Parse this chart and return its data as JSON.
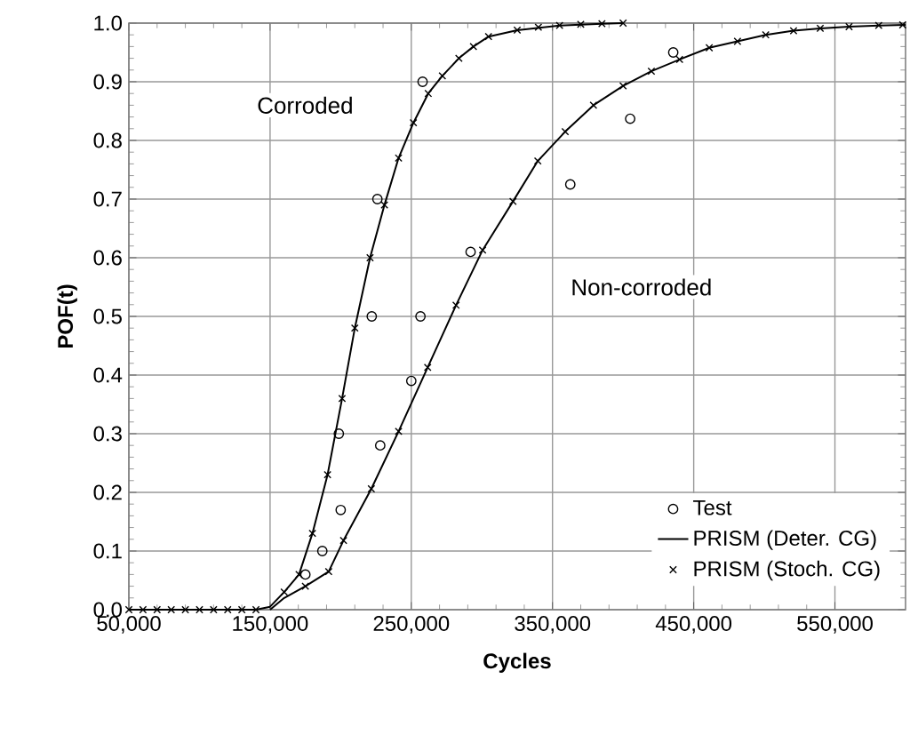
{
  "chart_data": {
    "type": "line",
    "xlabel": "Cycles",
    "ylabel": "POF(t)",
    "xlim": [
      50000,
      600000
    ],
    "ylim": [
      0,
      1
    ],
    "xticks": [
      {
        "value": 50000,
        "label": "50,000"
      },
      {
        "value": 150000,
        "label": "150,000"
      },
      {
        "value": 250000,
        "label": "250,000"
      },
      {
        "value": 350000,
        "label": "350,000"
      },
      {
        "value": 450000,
        "label": "450,000"
      },
      {
        "value": 550000,
        "label": "550,000"
      }
    ],
    "yticks": [
      {
        "value": 0,
        "label": "0.0"
      },
      0.1,
      0.2,
      0.3,
      0.4,
      0.5,
      0.6,
      0.7,
      0.8,
      0.9,
      {
        "value": 1,
        "label": "1.0"
      }
    ],
    "grid": true,
    "legend": "bottom right",
    "annotations": [
      "Corroded",
      "Non-corroded"
    ],
    "series": [
      {
        "name": "Test",
        "type": "scatter",
        "marker": "circle",
        "color": "#000000",
        "x": [
          175000,
          187000,
          198700,
          222000,
          226000,
          258000,
          200000,
          228000,
          250000,
          256500,
          292000,
          362600,
          405000,
          435500
        ],
        "values": [
          0.06,
          0.1,
          0.3,
          0.5,
          0.7,
          0.9,
          0.17,
          0.28,
          0.39,
          0.5,
          0.61,
          0.725,
          0.837,
          0.95
        ]
      },
      {
        "name": "PRISM (Deter. CG)",
        "marker": "none",
        "line_style": "solid",
        "color": "#000000",
        "x": [
          50000,
          140000,
          150000,
          160000,
          170500,
          180000,
          190700,
          201000,
          210000,
          220800,
          231000,
          241000,
          251500,
          262000,
          272000,
          283700,
          294000,
          304700,
          325000,
          355000,
          385000,
          400000
        ],
        "values": [
          0,
          0,
          0.005,
          0.03,
          0.06,
          0.13,
          0.23,
          0.36,
          0.48,
          0.6,
          0.69,
          0.77,
          0.83,
          0.88,
          0.91,
          0.94,
          0.96,
          0.977,
          0.988,
          0.996,
          0.999,
          1.0
        ]
      },
      {
        "marker": "none",
        "line_style": "solid",
        "color": "#000000",
        "x": [
          150000,
          160000,
          175000,
          191500,
          202000,
          221700,
          241000,
          261600,
          281700,
          300500,
          322000,
          339600,
          359000,
          379000,
          400000,
          420000,
          440000,
          461000,
          481000,
          501000,
          520700,
          539600,
          560000,
          581000,
          600000
        ],
        "values": [
          0,
          0.02,
          0.04,
          0.065,
          0.118,
          0.206,
          0.304,
          0.413,
          0.519,
          0.613,
          0.696,
          0.765,
          0.815,
          0.86,
          0.893,
          0.918,
          0.938,
          0.958,
          0.969,
          0.98,
          0.987,
          0.991,
          0.994,
          0.996,
          0.997
        ]
      },
      {
        "name": "PRISM (Stoch. CG)",
        "type": "scatter",
        "marker": "cross",
        "color": "#000000",
        "x": [
          50000,
          60000,
          70000,
          80000,
          90000,
          100000,
          110000,
          120000,
          130000,
          140000,
          160000,
          170500,
          180000,
          190700,
          201000,
          210000,
          220800,
          231000,
          241000,
          251500,
          262000,
          272000,
          283700,
          294000,
          304700,
          325000,
          340000,
          355000,
          370000,
          385000,
          400000
        ],
        "values": [
          0,
          0,
          0,
          0,
          0,
          0,
          0,
          0,
          0,
          0,
          0.03,
          0.06,
          0.13,
          0.23,
          0.36,
          0.48,
          0.6,
          0.69,
          0.77,
          0.83,
          0.88,
          0.91,
          0.94,
          0.96,
          0.977,
          0.988,
          0.993,
          0.996,
          0.998,
          0.999,
          1.0
        ]
      },
      {
        "type": "scatter",
        "marker": "cross",
        "color": "#000000",
        "x": [
          175000,
          191500,
          202000,
          221700,
          241000,
          261600,
          281700,
          300500,
          322000,
          339600,
          359000,
          379000,
          400000,
          420000,
          440000,
          461000,
          481000,
          501000,
          520700,
          539600,
          560000,
          581000,
          598000
        ],
        "values": [
          0.04,
          0.065,
          0.118,
          0.206,
          0.304,
          0.413,
          0.519,
          0.613,
          0.696,
          0.765,
          0.815,
          0.86,
          0.893,
          0.918,
          0.938,
          0.958,
          0.969,
          0.98,
          0.987,
          0.991,
          0.994,
          0.996,
          0.997
        ]
      }
    ]
  }
}
